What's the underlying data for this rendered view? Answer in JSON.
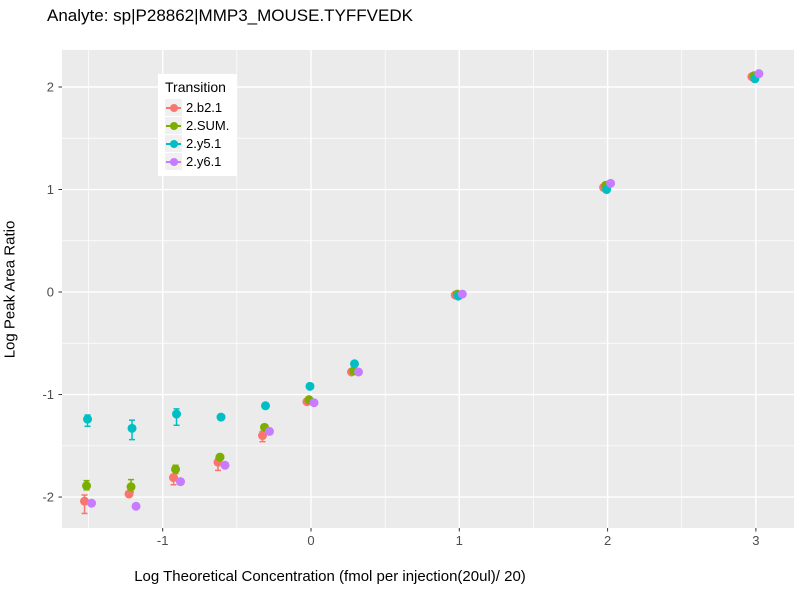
{
  "chart_data": {
    "type": "scatter",
    "title": "Analyte: sp|P28862|MMP3_MOUSE.TYFFVEDK",
    "xlabel": "Log Theoretical Concentration (fmol per injection(20ul)/ 20)",
    "ylabel": "Log Peak Area Ratio",
    "xlim": [
      -1.679,
      3.257
    ],
    "ylim": [
      -2.302,
      2.361
    ],
    "x_ticks": [
      -1,
      0,
      1,
      2,
      3
    ],
    "y_ticks": [
      -2,
      -1,
      0,
      1,
      2
    ],
    "grid": {
      "major": true,
      "minor": true
    },
    "panel_bg": "#EBEBEB",
    "gridline_color": "#FFFFFF",
    "tick_label_color": "#4D4D4D",
    "legend": {
      "title": "Transition",
      "position": "inside-top-left"
    },
    "series": [
      {
        "name": "2.b2.1",
        "color": "#F8766D",
        "points": [
          {
            "x": -1.5,
            "y": -2.04,
            "lo": -2.16,
            "hi": -1.98
          },
          {
            "x": -1.2,
            "y": -1.97
          },
          {
            "x": -0.9,
            "y": -1.81,
            "lo": -1.88,
            "hi": -1.78
          },
          {
            "x": -0.6,
            "y": -1.66,
            "lo": -1.74,
            "hi": -1.62
          },
          {
            "x": -0.3,
            "y": -1.4,
            "lo": -1.46,
            "hi": -1.36
          },
          {
            "x": 0.0,
            "y": -1.07
          },
          {
            "x": 0.3,
            "y": -0.78
          },
          {
            "x": 1.0,
            "y": -0.03
          },
          {
            "x": 2.0,
            "y": 1.02
          },
          {
            "x": 3.0,
            "y": 2.1
          }
        ]
      },
      {
        "name": "2.SUM.",
        "color": "#7CAE00",
        "points": [
          {
            "x": -1.5,
            "y": -1.89,
            "lo": -1.93,
            "hi": -1.84
          },
          {
            "x": -1.2,
            "y": -1.9,
            "lo": -1.95,
            "hi": -1.83
          },
          {
            "x": -0.9,
            "y": -1.73,
            "lo": -1.77,
            "hi": -1.69
          },
          {
            "x": -0.6,
            "y": -1.61
          },
          {
            "x": -0.3,
            "y": -1.32
          },
          {
            "x": 0.0,
            "y": -1.05
          },
          {
            "x": 0.3,
            "y": -0.77
          },
          {
            "x": 1.0,
            "y": -0.02
          },
          {
            "x": 2.0,
            "y": 1.04
          },
          {
            "x": 3.0,
            "y": 2.11
          }
        ]
      },
      {
        "name": "2.y5.1",
        "color": "#00BFC4",
        "points": [
          {
            "x": -1.5,
            "y": -1.24,
            "lo": -1.31,
            "hi": -1.2
          },
          {
            "x": -1.2,
            "y": -1.33,
            "lo": -1.44,
            "hi": -1.25
          },
          {
            "x": -0.9,
            "y": -1.19,
            "lo": -1.3,
            "hi": -1.14
          },
          {
            "x": -0.6,
            "y": -1.22
          },
          {
            "x": -0.3,
            "y": -1.11
          },
          {
            "x": 0.0,
            "y": -0.92
          },
          {
            "x": 0.3,
            "y": -0.7
          },
          {
            "x": 1.0,
            "y": -0.04
          },
          {
            "x": 2.0,
            "y": 1.0
          },
          {
            "x": 3.0,
            "y": 2.08
          }
        ]
      },
      {
        "name": "2.y6.1",
        "color": "#C77CFF",
        "points": [
          {
            "x": -1.5,
            "y": -2.06
          },
          {
            "x": -1.2,
            "y": -2.09
          },
          {
            "x": -0.9,
            "y": -1.85
          },
          {
            "x": -0.6,
            "y": -1.69
          },
          {
            "x": -0.3,
            "y": -1.36
          },
          {
            "x": 0.0,
            "y": -1.08
          },
          {
            "x": 0.3,
            "y": -0.78
          },
          {
            "x": 1.0,
            "y": -0.02
          },
          {
            "x": 2.0,
            "y": 1.06
          },
          {
            "x": 3.0,
            "y": 2.13
          }
        ]
      }
    ]
  }
}
